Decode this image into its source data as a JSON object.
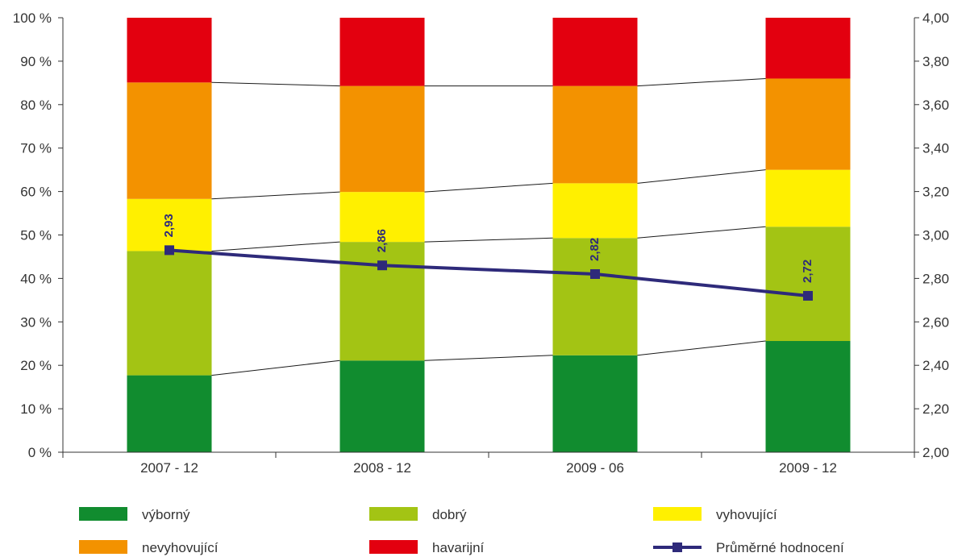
{
  "chart_data": {
    "type": "bar",
    "stacked": true,
    "percent_scale": true,
    "categories": [
      "2007 - 12",
      "2008 - 12",
      "2009 - 06",
      "2009 - 12"
    ],
    "series": [
      {
        "name": "výborný",
        "color": "#118c2f",
        "values": [
          17.7,
          21.1,
          22.3,
          25.6
        ]
      },
      {
        "name": "dobrý",
        "color": "#a3c414",
        "values": [
          28.6,
          27.3,
          27.0,
          26.3
        ]
      },
      {
        "name": "vyhovující",
        "color": "#fff000",
        "values": [
          12.0,
          11.5,
          12.6,
          13.1
        ]
      },
      {
        "name": "nevyhovující",
        "color": "#f39200",
        "values": [
          26.8,
          24.4,
          22.4,
          21.0
        ]
      },
      {
        "name": "havarijní",
        "color": "#e3000f",
        "values": [
          14.9,
          15.7,
          15.7,
          14.0
        ]
      }
    ],
    "line_series": {
      "name": "Průměrné hodnocení",
      "color": "#2e2a7a",
      "values": [
        2.93,
        2.86,
        2.82,
        2.72
      ],
      "labels": [
        "2,93",
        "2,86",
        "2,82",
        "2,72"
      ],
      "axis": "right"
    },
    "left_axis": {
      "ylim": [
        0,
        100
      ],
      "tick_values": [
        0,
        10,
        20,
        30,
        40,
        50,
        60,
        70,
        80,
        90,
        100
      ],
      "tick_labels": [
        "0 %",
        "10 %",
        "20 %",
        "30 %",
        "40 %",
        "50 %",
        "60 %",
        "70 %",
        "80 %",
        "90 %",
        "100 %"
      ]
    },
    "right_axis": {
      "ylim": [
        2.0,
        4.0
      ],
      "tick_values": [
        2.0,
        2.2,
        2.4,
        2.6,
        2.8,
        3.0,
        3.2,
        3.4,
        3.6,
        3.8,
        4.0
      ],
      "tick_labels": [
        "2,00",
        "2,20",
        "2,40",
        "2,60",
        "2,80",
        "3,00",
        "3,20",
        "3,40",
        "3,60",
        "3,80",
        "4,00"
      ]
    },
    "legend": {
      "placement": "bottom",
      "items": [
        "výborný",
        "dobrý",
        "vyhovující",
        "nevyhovující",
        "havarijní",
        "Průměrné hodnocení"
      ]
    },
    "grid": false
  }
}
